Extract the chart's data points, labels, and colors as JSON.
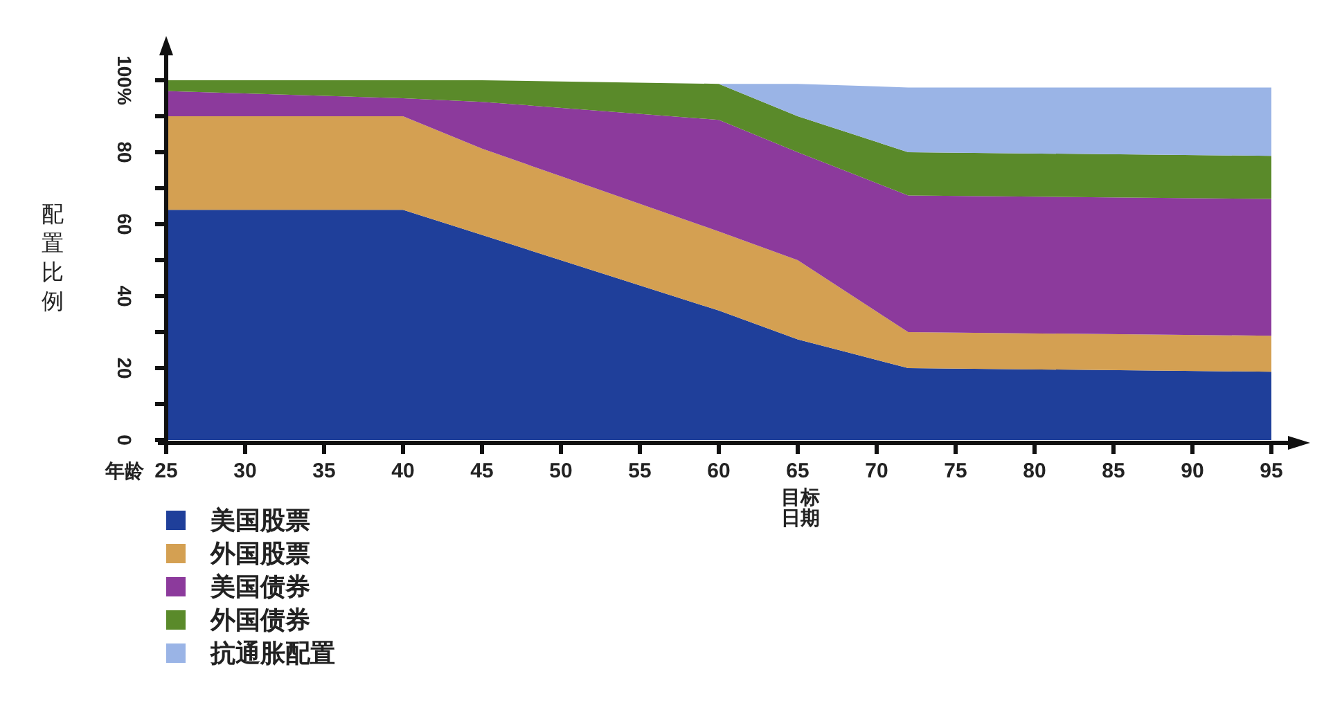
{
  "chart_data": {
    "type": "area",
    "stacked": true,
    "xlabel": "年龄",
    "ylabel": "配置比例",
    "x": [
      25,
      40,
      45,
      60,
      65,
      72,
      95
    ],
    "series": [
      {
        "name": "美国股票",
        "color": "#1f3f9a",
        "values": [
          64,
          64,
          57,
          36,
          28,
          20,
          19
        ]
      },
      {
        "name": "外国股票",
        "color": "#d4a052",
        "values": [
          26,
          26,
          24,
          22,
          22,
          10,
          10
        ]
      },
      {
        "name": "美国债券",
        "color": "#8c3a9c",
        "values": [
          7,
          5,
          13,
          31,
          30,
          38,
          38
        ]
      },
      {
        "name": "外国债券",
        "color": "#5a8a2a",
        "values": [
          3,
          5,
          6,
          10,
          10,
          12,
          12
        ]
      },
      {
        "name": "抗通胀配置",
        "color": "#9ab4e6",
        "values": [
          0,
          0,
          0,
          0,
          9,
          18,
          19
        ]
      }
    ],
    "xlim": [
      25,
      95
    ],
    "xticks": [
      25,
      30,
      35,
      40,
      45,
      50,
      55,
      60,
      65,
      70,
      75,
      80,
      85,
      90,
      95
    ],
    "ylim": [
      0,
      100
    ],
    "yticks": [
      0,
      {
        "value": 10,
        "label": null
      },
      20,
      {
        "value": 30,
        "label": null
      },
      40,
      {
        "value": 50,
        "label": null
      },
      60,
      {
        "value": 70,
        "label": null
      },
      80,
      {
        "value": 90,
        "label": null
      },
      {
        "value": 100,
        "label": "100%"
      }
    ],
    "annotations": [
      "目标日期"
    ],
    "legend": "bottom left"
  }
}
